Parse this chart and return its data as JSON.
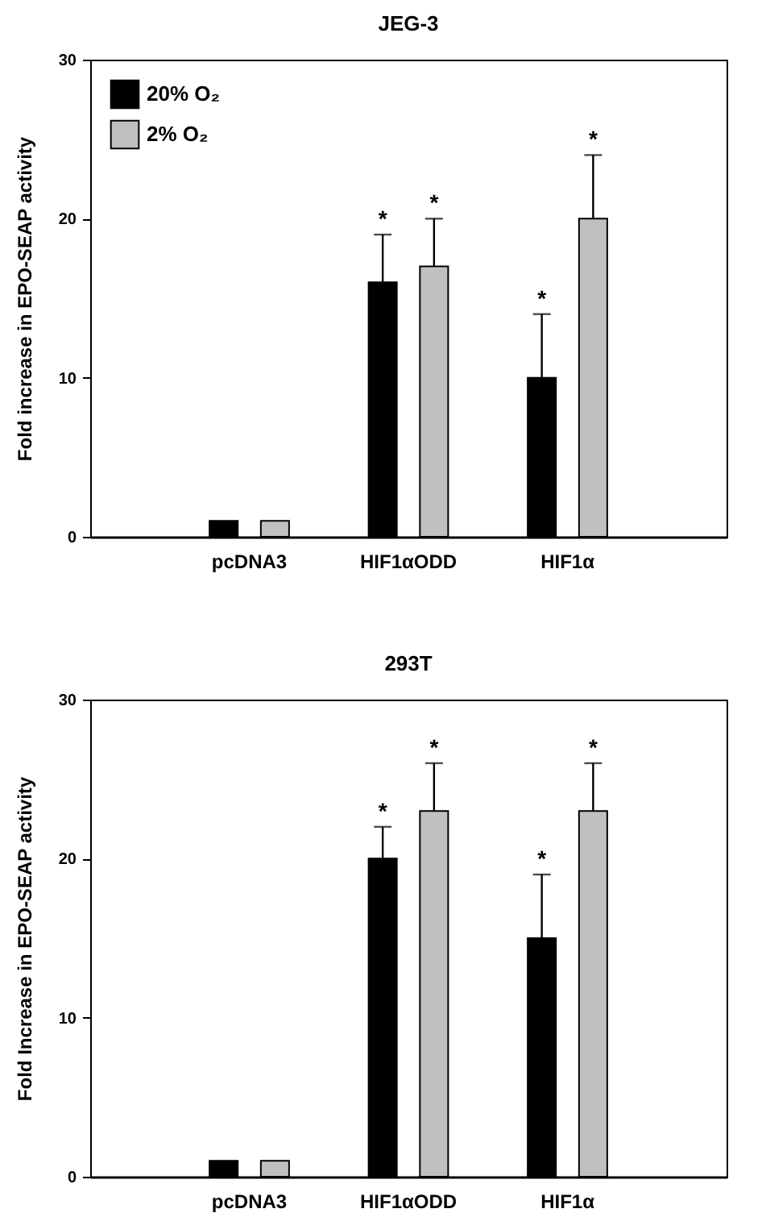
{
  "chart_data": [
    {
      "type": "bar",
      "title": "JEG-3",
      "ylabel": "Fold increase in EPO-SEAP activity",
      "categories": [
        "pcDNA3",
        "HIF1αODD",
        "HIF1α"
      ],
      "series": [
        {
          "name": "20% O₂",
          "color": "#000000",
          "values": [
            1,
            16,
            10
          ],
          "errors": [
            null,
            [
              16,
              19
            ],
            [
              10,
              14
            ]
          ]
        },
        {
          "name": "2% O₂",
          "color": "#c0c0c0",
          "values": [
            1,
            17,
            20
          ],
          "errors": [
            null,
            [
              17,
              20
            ],
            [
              20,
              24
            ]
          ]
        }
      ],
      "ylim": [
        0,
        30
      ],
      "yticks": [
        0,
        10,
        20,
        30
      ],
      "legend": "top left",
      "grid": false,
      "annotations": [
        "*",
        "*",
        "*",
        "*"
      ]
    },
    {
      "type": "bar",
      "title": "293T",
      "ylabel": "Fold Increase in EPO-SEAP activity",
      "categories": [
        "pcDNA3",
        "HIF1αODD",
        "HIF1α"
      ],
      "series": [
        {
          "name": "20% O₂",
          "color": "#000000",
          "values": [
            1,
            20,
            15
          ],
          "errors": [
            null,
            [
              20,
              22
            ],
            [
              15,
              19
            ]
          ]
        },
        {
          "name": "2% O₂",
          "color": "#c0c0c0",
          "values": [
            1,
            23,
            23
          ],
          "errors": [
            null,
            [
              23,
              26
            ],
            [
              23,
              26
            ]
          ]
        }
      ],
      "ylim": [
        0,
        30
      ],
      "yticks": [
        0,
        10,
        20,
        30
      ],
      "legend": "top left",
      "grid": false,
      "annotations": [
        "*",
        "*",
        "*",
        "*"
      ]
    }
  ]
}
